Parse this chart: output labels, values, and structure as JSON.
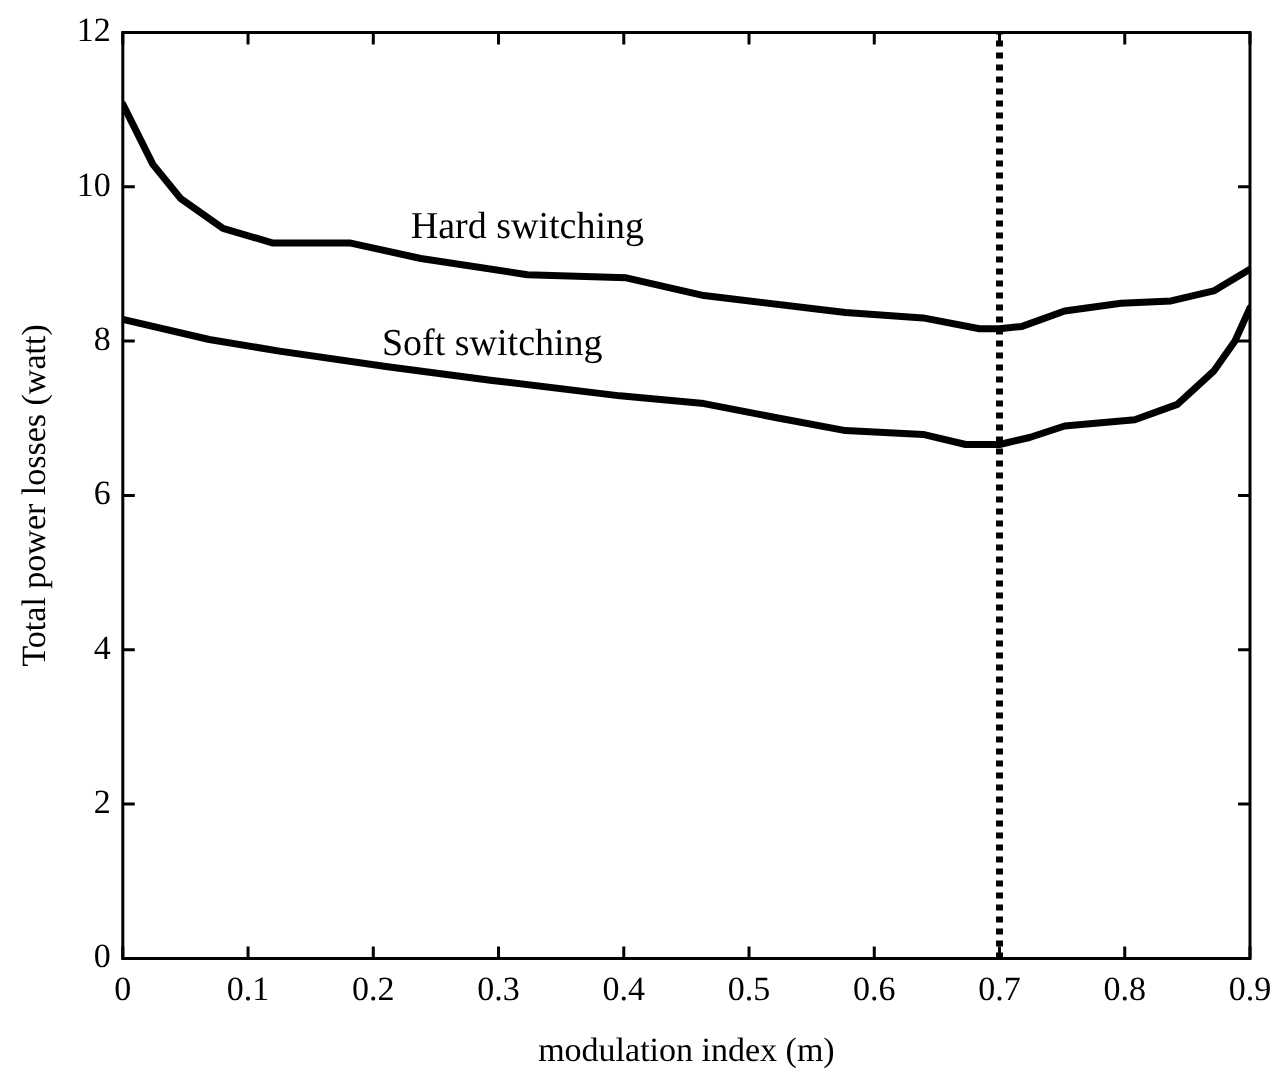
{
  "chart_data": {
    "type": "line",
    "xlabel": "modulation index (m)",
    "ylabel": "Total power losses (watt)",
    "xlim": [
      0,
      0.9
    ],
    "xticks": [
      0,
      0.1,
      0.2,
      0.3,
      0.4,
      0.5,
      0.6,
      0.7,
      0.8,
      0.9
    ],
    "ylim": [
      0,
      12
    ],
    "yticks": [
      0,
      2,
      4,
      6,
      8,
      10,
      12
    ],
    "grid": false,
    "legend": false,
    "marker": "none",
    "line_style": "solid",
    "series": [
      {
        "name": "Hard switching",
        "color": "#000000",
        "x": [
          0,
          0.024,
          0.046,
          0.08,
          0.12,
          0.182,
          0.238,
          0.323,
          0.402,
          0.464,
          0.577,
          0.639,
          0.684,
          0.7,
          0.718,
          0.752,
          0.797,
          0.837,
          0.871,
          0.9
        ],
        "values": [
          11.07,
          10.29,
          9.85,
          9.46,
          9.27,
          9.27,
          9.07,
          8.86,
          8.82,
          8.59,
          8.37,
          8.3,
          8.16,
          8.16,
          8.19,
          8.39,
          8.49,
          8.52,
          8.65,
          8.93
        ]
      },
      {
        "name": "Soft switching",
        "color": "#000000",
        "x": [
          0,
          0.069,
          0.125,
          0.21,
          0.295,
          0.397,
          0.464,
          0.521,
          0.577,
          0.639,
          0.673,
          0.7,
          0.724,
          0.752,
          0.808,
          0.842,
          0.871,
          0.888,
          0.9
        ],
        "values": [
          8.28,
          8.02,
          7.87,
          7.67,
          7.49,
          7.29,
          7.19,
          7.01,
          6.84,
          6.79,
          6.66,
          6.66,
          6.75,
          6.9,
          6.98,
          7.18,
          7.61,
          8.0,
          8.43
        ]
      }
    ],
    "ref_lines": [
      {
        "axis": "x",
        "value": 0.7,
        "color": "#000000",
        "line_style": "dotted"
      }
    ]
  }
}
